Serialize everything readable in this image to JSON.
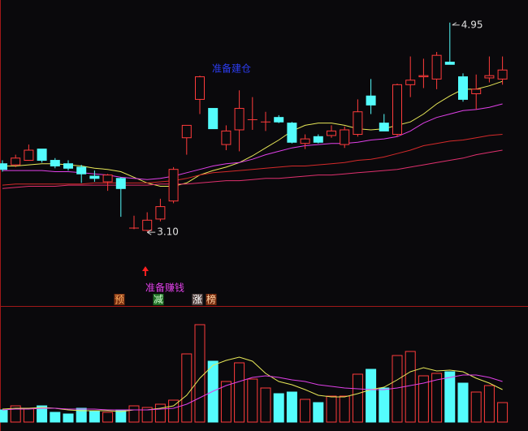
{
  "chart_data": [
    {
      "type": "candlestick",
      "open": [
        3.7,
        3.69,
        3.73,
        3.83,
        3.73,
        3.7,
        3.67,
        3.59,
        3.54,
        3.57,
        3.13,
        3.11,
        3.21,
        3.37,
        3.93,
        4.27,
        4.19,
        3.87,
        4.0,
        4.09,
        4.07,
        4.11,
        4.06,
        3.88,
        3.94,
        3.95,
        3.87,
        3.96,
        4.3,
        4.06,
        3.96,
        4.4,
        4.47,
        4.45,
        4.6,
        4.47,
        4.32,
        4.46,
        4.45
      ],
      "high": [
        3.73,
        3.78,
        3.87,
        3.83,
        3.75,
        3.73,
        3.69,
        3.64,
        3.61,
        3.58,
        3.24,
        3.27,
        3.39,
        3.67,
        4.04,
        4.48,
        4.19,
        4.04,
        4.35,
        4.29,
        4.16,
        4.13,
        4.07,
        3.96,
        3.96,
        4.04,
        4.03,
        4.27,
        4.45,
        4.14,
        4.41,
        4.65,
        4.63,
        4.69,
        4.95,
        4.5,
        4.49,
        4.65,
        4.65
      ],
      "low": [
        3.63,
        3.67,
        3.73,
        3.71,
        3.66,
        3.64,
        3.53,
        3.54,
        3.46,
        3.23,
        3.12,
        3.1,
        3.19,
        3.35,
        3.78,
        4.14,
        4.01,
        3.82,
        3.81,
        4.0,
        3.99,
        4.06,
        3.88,
        3.83,
        3.88,
        3.93,
        3.84,
        3.94,
        4.14,
        3.99,
        3.94,
        4.29,
        4.37,
        4.36,
        4.58,
        4.25,
        4.18,
        4.42,
        4.4
      ],
      "close": [
        3.65,
        3.75,
        3.82,
        3.73,
        3.68,
        3.66,
        3.61,
        3.57,
        3.6,
        3.48,
        3.13,
        3.2,
        3.32,
        3.65,
        4.04,
        4.47,
        4.01,
        3.99,
        4.19,
        4.09,
        4.07,
        4.07,
        3.89,
        3.92,
        3.89,
        3.99,
        4.0,
        4.16,
        4.22,
        3.99,
        4.4,
        4.44,
        4.48,
        4.66,
        4.58,
        4.27,
        4.36,
        4.48,
        4.53
      ],
      "up_color": "#ff3b3b",
      "down_color": "#54fcfc",
      "ylim": [
        2.44,
        5.15
      ],
      "series": [
        {
          "color": "#e8e858",
          "values": [
            3.68,
            3.68,
            3.69,
            3.7,
            3.7,
            3.69,
            3.68,
            3.66,
            3.65,
            3.63,
            3.58,
            3.53,
            3.5,
            3.5,
            3.53,
            3.6,
            3.64,
            3.67,
            3.71,
            3.77,
            3.84,
            3.91,
            3.99,
            4.04,
            4.06,
            4.06,
            4.04,
            4.01,
            4.0,
            4.01,
            4.04,
            4.07,
            4.14,
            4.23,
            4.3,
            4.36,
            4.36,
            4.39,
            4.43
          ]
        },
        {
          "color": "#e040e8",
          "values": [
            3.64,
            3.64,
            3.64,
            3.64,
            3.63,
            3.63,
            3.62,
            3.61,
            3.6,
            3.58,
            3.57,
            3.56,
            3.57,
            3.59,
            3.62,
            3.65,
            3.68,
            3.7,
            3.71,
            3.74,
            3.78,
            3.81,
            3.84,
            3.86,
            3.87,
            3.88,
            3.88,
            3.89,
            3.91,
            3.92,
            3.94,
            3.99,
            4.06,
            4.11,
            4.14,
            4.17,
            4.18,
            4.2,
            4.23
          ]
        },
        {
          "color": "#d42a2a",
          "values": [
            3.51,
            3.52,
            3.52,
            3.52,
            3.52,
            3.52,
            3.52,
            3.53,
            3.53,
            3.53,
            3.53,
            3.53,
            3.54,
            3.55,
            3.57,
            3.6,
            3.62,
            3.63,
            3.64,
            3.65,
            3.66,
            3.67,
            3.68,
            3.68,
            3.69,
            3.7,
            3.71,
            3.73,
            3.74,
            3.76,
            3.79,
            3.82,
            3.86,
            3.88,
            3.9,
            3.91,
            3.93,
            3.95,
            3.96
          ]
        },
        {
          "color": "#e0306e",
          "values": [
            3.48,
            3.49,
            3.5,
            3.5,
            3.5,
            3.51,
            3.51,
            3.51,
            3.51,
            3.51,
            3.51,
            3.51,
            3.52,
            3.52,
            3.52,
            3.53,
            3.54,
            3.55,
            3.55,
            3.56,
            3.57,
            3.57,
            3.58,
            3.59,
            3.6,
            3.6,
            3.61,
            3.62,
            3.63,
            3.64,
            3.65,
            3.67,
            3.69,
            3.71,
            3.73,
            3.75,
            3.78,
            3.8,
            3.82
          ]
        }
      ],
      "annotations": {
        "high_label": "4.95",
        "low_label": "3.10",
        "signal": "准备建仓",
        "tip": "准备赚钱",
        "badges": [
          "预",
          "减",
          "涨",
          "榜"
        ]
      }
    },
    {
      "type": "bar",
      "values": [
        15,
        20,
        17,
        20,
        12,
        10,
        17,
        13,
        12,
        15,
        20,
        18,
        22,
        27,
        84,
        120,
        75,
        50,
        73,
        53,
        42,
        35,
        37,
        28,
        24,
        32,
        32,
        59,
        65,
        42,
        82,
        87,
        57,
        60,
        62,
        48,
        37,
        45,
        24
      ],
      "ylim": [
        0,
        125
      ],
      "series": [
        {
          "color": "#e8e858",
          "values": [
            16,
            17,
            17,
            18,
            17,
            15,
            14,
            14,
            14,
            13,
            15,
            15,
            17,
            20,
            33,
            54,
            70,
            76,
            80,
            75,
            60,
            50,
            46,
            40,
            33,
            31,
            31,
            35,
            40,
            43,
            52,
            62,
            67,
            63,
            64,
            62,
            54,
            48,
            40
          ]
        },
        {
          "color": "#e040e8",
          "values": [
            15,
            16,
            16,
            17,
            17,
            16,
            16,
            16,
            15,
            15,
            15,
            15,
            16,
            17,
            22,
            30,
            38,
            45,
            50,
            55,
            57,
            55,
            52,
            50,
            46,
            44,
            42,
            41,
            40,
            40,
            42,
            45,
            48,
            52,
            55,
            58,
            58,
            55,
            50
          ]
        }
      ]
    }
  ]
}
